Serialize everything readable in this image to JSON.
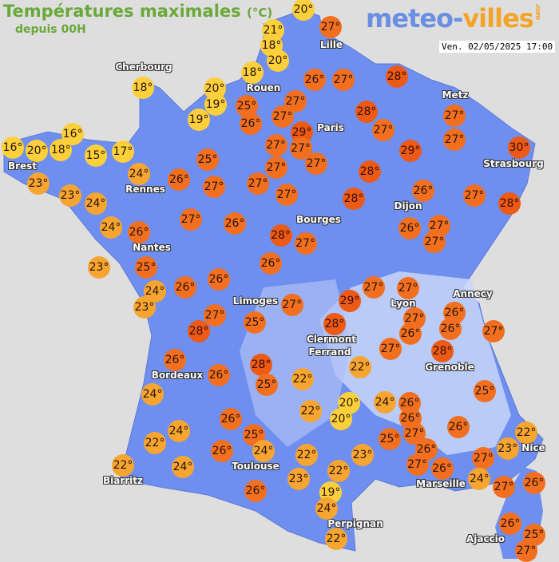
{
  "header": {
    "title": "Températures maximales",
    "unit": "(°C)",
    "subtitle": "depuis 00H"
  },
  "logo": {
    "part1": "meteo-",
    "part2": "villes",
    "suffix": ".com"
  },
  "timestamp": "Ven. 02/05/2025 17:00",
  "colors": {
    "land": "#6f8ff0",
    "sea": "#dedede",
    "cool": "#fcd03a",
    "mild": "#f7a531",
    "warm": "#f26f1f",
    "hot": "#ec5a16"
  },
  "cities": [
    "Cherbourg",
    "Lille",
    "Rouen",
    "Paris",
    "Metz",
    "Strasbourg",
    "Brest",
    "Rennes",
    "Dijon",
    "Bourges",
    "Nantes",
    "Annecy",
    "Limoges",
    "Lyon",
    "Clermont",
    "Ferrand",
    "Grenoble",
    "Bordeaux",
    "Toulouse",
    "Biarritz",
    "Marseille",
    "Nice",
    "Perpignan",
    "Ajaccio"
  ],
  "temperatures": [
    21,
    20,
    18,
    27,
    20,
    18,
    28,
    26,
    27,
    20,
    19,
    25,
    27,
    19,
    26,
    27,
    29,
    28,
    27,
    18,
    16,
    16,
    20,
    18,
    15,
    17,
    27,
    27,
    29,
    30,
    27,
    27,
    27,
    25,
    27,
    28,
    23,
    24,
    26,
    27,
    27,
    27,
    28,
    26,
    27,
    28,
    23,
    24,
    27,
    26,
    28,
    27,
    26,
    27,
    27,
    24,
    26,
    23,
    25,
    26,
    27,
    27,
    24,
    26,
    26,
    23,
    27,
    29,
    27,
    26,
    27,
    28,
    25,
    28,
    26,
    26,
    27,
    27,
    28,
    26,
    28,
    22,
    26,
    25,
    22,
    24,
    20,
    24,
    26,
    25,
    22,
    20,
    26,
    24,
    26,
    26,
    25,
    22,
    27,
    25,
    22,
    23,
    26,
    24,
    22,
    23,
    26,
    27,
    27,
    22,
    24,
    22,
    26,
    24,
    23,
    27,
    26,
    19,
    26,
    24,
    22,
    26,
    25,
    27
  ],
  "degree_symbol": "°"
}
